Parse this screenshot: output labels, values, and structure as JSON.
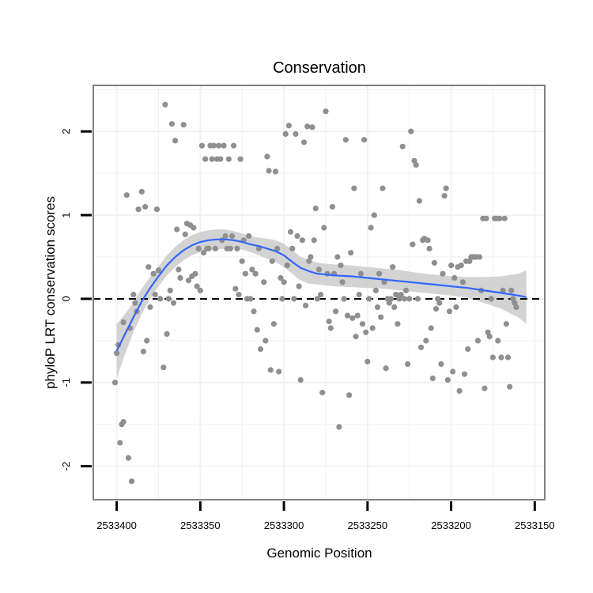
{
  "colors": {
    "points": "#8f8f8f",
    "smooth_line": "#3366ff",
    "ribbon": "#c8c8c8",
    "grid": "#f2f2f2",
    "panel_border": "#808080",
    "reference_line": "#000000"
  },
  "chart_data": {
    "type": "scatter",
    "title": "Conservation",
    "xlabel": "Genomic Position",
    "ylabel": "phyloP LRT conservation scores",
    "x_reversed": true,
    "xlim": [
      2533414,
      2533144
    ],
    "ylim": [
      -2.4,
      2.55
    ],
    "x_ticks": [
      2533400,
      2533350,
      2533300,
      2533250,
      2533200,
      2533150
    ],
    "x_tick_labels": [
      "2533400",
      "2533350",
      "2533300",
      "2533250",
      "2533200",
      "2533150"
    ],
    "y_ticks": [
      -2,
      -1,
      0,
      1,
      2
    ],
    "y_tick_labels": [
      "-2",
      "-1",
      "0",
      "1",
      "2"
    ],
    "reference_line": {
      "y": 0,
      "style": "dashed"
    },
    "points": [
      [
        2533401,
        -1.0
      ],
      [
        2533400,
        -0.65
      ],
      [
        2533399,
        -0.55
      ],
      [
        2533398,
        -1.72
      ],
      [
        2533397,
        -1.5
      ],
      [
        2533396,
        -1.47
      ],
      [
        2533396,
        -0.28
      ],
      [
        2533394,
        1.24
      ],
      [
        2533393,
        -1.9
      ],
      [
        2533392,
        -0.35
      ],
      [
        2533391,
        -2.18
      ],
      [
        2533390,
        0.05
      ],
      [
        2533389,
        -0.05
      ],
      [
        2533388,
        -0.15
      ],
      [
        2533387,
        1.07
      ],
      [
        2533385,
        1.28
      ],
      [
        2533384,
        -0.63
      ],
      [
        2533383,
        1.1
      ],
      [
        2533382,
        -0.5
      ],
      [
        2533381,
        0.38
      ],
      [
        2533380,
        -0.1
      ],
      [
        2533378,
        0.3
      ],
      [
        2533377,
        0.05
      ],
      [
        2533376,
        1.07
      ],
      [
        2533375,
        0.34
      ],
      [
        2533374,
        0.0
      ],
      [
        2533372,
        -0.82
      ],
      [
        2533371,
        2.32
      ],
      [
        2533370,
        -0.42
      ],
      [
        2533369,
        0.0
      ],
      [
        2533368,
        0.1
      ],
      [
        2533367,
        2.09
      ],
      [
        2533366,
        -0.05
      ],
      [
        2533365,
        1.89
      ],
      [
        2533364,
        0.83
      ],
      [
        2533363,
        0.35
      ],
      [
        2533362,
        0.25
      ],
      [
        2533360,
        2.08
      ],
      [
        2533359,
        0.77
      ],
      [
        2533358,
        0.9
      ],
      [
        2533357,
        0.22
      ],
      [
        2533356,
        0.88
      ],
      [
        2533355,
        0.27
      ],
      [
        2533354,
        0.85
      ],
      [
        2533353,
        0.3
      ],
      [
        2533352,
        0.15
      ],
      [
        2533351,
        0.6
      ],
      [
        2533350,
        0.1
      ],
      [
        2533349,
        1.83
      ],
      [
        2533348,
        0.55
      ],
      [
        2533347,
        1.67
      ],
      [
        2533346,
        0.6
      ],
      [
        2533345,
        0.6
      ],
      [
        2533344,
        1.83
      ],
      [
        2533343,
        1.67
      ],
      [
        2533342,
        1.83
      ],
      [
        2533341,
        0.6
      ],
      [
        2533340,
        1.67
      ],
      [
        2533339,
        1.83
      ],
      [
        2533338,
        1.67
      ],
      [
        2533337,
        0.7
      ],
      [
        2533336,
        1.83
      ],
      [
        2533335,
        0.75
      ],
      [
        2533334,
        0.6
      ],
      [
        2533333,
        1.67
      ],
      [
        2533332,
        0.6
      ],
      [
        2533331,
        0.75
      ],
      [
        2533330,
        1.83
      ],
      [
        2533329,
        0.12
      ],
      [
        2533328,
        0.6
      ],
      [
        2533327,
        0.05
      ],
      [
        2533326,
        1.67
      ],
      [
        2533325,
        0.45
      ],
      [
        2533324,
        0.7
      ],
      [
        2533323,
        0.3
      ],
      [
        2533322,
        0.0
      ],
      [
        2533321,
        0.75
      ],
      [
        2533320,
        0.0
      ],
      [
        2533319,
        0.35
      ],
      [
        2533318,
        -0.15
      ],
      [
        2533317,
        0.3
      ],
      [
        2533316,
        -0.37
      ],
      [
        2533315,
        0.6
      ],
      [
        2533314,
        -0.6
      ],
      [
        2533312,
        0.2
      ],
      [
        2533311,
        -0.5
      ],
      [
        2533310,
        1.7
      ],
      [
        2533309,
        1.53
      ],
      [
        2533308,
        -0.85
      ],
      [
        2533307,
        0.45
      ],
      [
        2533306,
        -0.3
      ],
      [
        2533305,
        1.52
      ],
      [
        2533304,
        0.6
      ],
      [
        2533303,
        -0.87
      ],
      [
        2533302,
        0.25
      ],
      [
        2533301,
        0.0
      ],
      [
        2533300,
        0.2
      ],
      [
        2533299,
        1.97
      ],
      [
        2533298,
        0.4
      ],
      [
        2533297,
        2.07
      ],
      [
        2533296,
        0.8
      ],
      [
        2533295,
        0.6
      ],
      [
        2533294,
        0.0
      ],
      [
        2533293,
        1.97
      ],
      [
        2533292,
        0.75
      ],
      [
        2533291,
        0.15
      ],
      [
        2533290,
        -0.97
      ],
      [
        2533289,
        0.7
      ],
      [
        2533288,
        1.87
      ],
      [
        2533287,
        -0.08
      ],
      [
        2533286,
        2.06
      ],
      [
        2533285,
        0.45
      ],
      [
        2533284,
        0.5
      ],
      [
        2533283,
        2.05
      ],
      [
        2533282,
        0.7
      ],
      [
        2533281,
        1.08
      ],
      [
        2533280,
        0.0
      ],
      [
        2533279,
        0.35
      ],
      [
        2533278,
        0.05
      ],
      [
        2533277,
        -1.12
      ],
      [
        2533276,
        0.85
      ],
      [
        2533275,
        2.24
      ],
      [
        2533274,
        0.3
      ],
      [
        2533273,
        -0.27
      ],
      [
        2533272,
        -0.35
      ],
      [
        2533271,
        1.1
      ],
      [
        2533270,
        0.3
      ],
      [
        2533269,
        -0.15
      ],
      [
        2533268,
        0.5
      ],
      [
        2533267,
        -1.53
      ],
      [
        2533266,
        0.4
      ],
      [
        2533265,
        0.2
      ],
      [
        2533264,
        0.0
      ],
      [
        2533263,
        1.9
      ],
      [
        2533262,
        -0.2
      ],
      [
        2533261,
        -1.15
      ],
      [
        2533260,
        0.55
      ],
      [
        2533259,
        -0.23
      ],
      [
        2533258,
        1.32
      ],
      [
        2533257,
        -0.45
      ],
      [
        2533256,
        -0.2
      ],
      [
        2533255,
        0.05
      ],
      [
        2533254,
        0.3
      ],
      [
        2533253,
        -0.3
      ],
      [
        2533252,
        1.9
      ],
      [
        2533251,
        -0.4
      ],
      [
        2533250,
        -0.75
      ],
      [
        2533249,
        0.0
      ],
      [
        2533248,
        0.85
      ],
      [
        2533247,
        -0.35
      ],
      [
        2533246,
        1.0
      ],
      [
        2533245,
        0.1
      ],
      [
        2533244,
        -0.1
      ],
      [
        2533243,
        0.3
      ],
      [
        2533242,
        -0.22
      ],
      [
        2533241,
        1.32
      ],
      [
        2533240,
        0.2
      ],
      [
        2533239,
        -0.83
      ],
      [
        2533238,
        0.0
      ],
      [
        2533237,
        -0.05
      ],
      [
        2533236,
        0.0
      ],
      [
        2533235,
        0.38
      ],
      [
        2533234,
        -0.1
      ],
      [
        2533233,
        0.05
      ],
      [
        2533232,
        -0.3
      ],
      [
        2533231,
        0.0
      ],
      [
        2533230,
        0.05
      ],
      [
        2533229,
        1.82
      ],
      [
        2533228,
        0.0
      ],
      [
        2533227,
        0.1
      ],
      [
        2533226,
        -0.78
      ],
      [
        2533225,
        0.0
      ],
      [
        2533224,
        2.0
      ],
      [
        2533223,
        0.65
      ],
      [
        2533222,
        1.65
      ],
      [
        2533221,
        1.6
      ],
      [
        2533220,
        0.0
      ],
      [
        2533219,
        1.17
      ],
      [
        2533218,
        -0.58
      ],
      [
        2533217,
        0.7
      ],
      [
        2533216,
        0.72
      ],
      [
        2533215,
        -0.5
      ],
      [
        2533214,
        0.7
      ],
      [
        2533213,
        0.6
      ],
      [
        2533212,
        -0.35
      ],
      [
        2533211,
        -0.95
      ],
      [
        2533210,
        0.43
      ],
      [
        2533209,
        -0.12
      ],
      [
        2533208,
        0.0
      ],
      [
        2533207,
        -0.05
      ],
      [
        2533206,
        -0.78
      ],
      [
        2533205,
        0.3
      ],
      [
        2533204,
        1.23
      ],
      [
        2533203,
        1.32
      ],
      [
        2533202,
        -0.97
      ],
      [
        2533201,
        -0.15
      ],
      [
        2533200,
        0.4
      ],
      [
        2533199,
        -0.87
      ],
      [
        2533198,
        0.25
      ],
      [
        2533197,
        -0.1
      ],
      [
        2533196,
        0.38
      ],
      [
        2533195,
        -1.1
      ],
      [
        2533194,
        0.4
      ],
      [
        2533193,
        0.2
      ],
      [
        2533192,
        -0.9
      ],
      [
        2533191,
        0.45
      ],
      [
        2533190,
        -0.6
      ],
      [
        2533189,
        0.45
      ],
      [
        2533188,
        0.5
      ],
      [
        2533187,
        0.5
      ],
      [
        2533186,
        0.5
      ],
      [
        2533185,
        0.5
      ],
      [
        2533184,
        -0.5
      ],
      [
        2533183,
        0.5
      ],
      [
        2533182,
        0.1
      ],
      [
        2533181,
        0.96
      ],
      [
        2533180,
        -1.07
      ],
      [
        2533179,
        0.96
      ],
      [
        2533178,
        -0.4
      ],
      [
        2533177,
        -0.45
      ],
      [
        2533176,
        0.0
      ],
      [
        2533175,
        -0.7
      ],
      [
        2533174,
        0.96
      ],
      [
        2533173,
        0.96
      ],
      [
        2533172,
        -0.5
      ],
      [
        2533171,
        0.96
      ],
      [
        2533170,
        -0.7
      ],
      [
        2533169,
        0.1
      ],
      [
        2533168,
        0.96
      ],
      [
        2533167,
        -0.3
      ],
      [
        2533166,
        -0.7
      ],
      [
        2533165,
        -1.05
      ],
      [
        2533164,
        0.1
      ],
      [
        2533163,
        0.0
      ],
      [
        2533162,
        -0.05
      ],
      [
        2533161,
        -0.1
      ]
    ],
    "smooth": {
      "method": "loess",
      "x": [
        2533400,
        2533395,
        2533390,
        2533385,
        2533380,
        2533375,
        2533370,
        2533365,
        2533360,
        2533355,
        2533350,
        2533345,
        2533340,
        2533335,
        2533330,
        2533325,
        2533320,
        2533315,
        2533310,
        2533305,
        2533300,
        2533295,
        2533290,
        2533285,
        2533280,
        2533270,
        2533260,
        2533250,
        2533240,
        2533230,
        2533220,
        2533210,
        2533200,
        2533190,
        2533180,
        2533170,
        2533160,
        2533155
      ],
      "y": [
        -0.62,
        -0.42,
        -0.22,
        -0.03,
        0.13,
        0.27,
        0.4,
        0.5,
        0.58,
        0.64,
        0.68,
        0.7,
        0.71,
        0.71,
        0.7,
        0.68,
        0.65,
        0.63,
        0.6,
        0.57,
        0.52,
        0.44,
        0.37,
        0.33,
        0.3,
        0.28,
        0.27,
        0.25,
        0.23,
        0.21,
        0.19,
        0.17,
        0.15,
        0.13,
        0.1,
        0.07,
        0.04,
        0.02
      ],
      "lower": [
        -0.95,
        -0.66,
        -0.4,
        -0.18,
        0.0,
        0.15,
        0.28,
        0.38,
        0.46,
        0.52,
        0.56,
        0.58,
        0.59,
        0.6,
        0.6,
        0.59,
        0.56,
        0.52,
        0.48,
        0.44,
        0.38,
        0.3,
        0.22,
        0.18,
        0.17,
        0.15,
        0.14,
        0.13,
        0.12,
        0.1,
        0.08,
        0.06,
        0.04,
        0.01,
        -0.05,
        -0.12,
        -0.22,
        -0.3
      ],
      "upper": [
        -0.3,
        -0.18,
        -0.04,
        0.12,
        0.26,
        0.39,
        0.52,
        0.62,
        0.7,
        0.76,
        0.8,
        0.82,
        0.83,
        0.83,
        0.81,
        0.78,
        0.75,
        0.73,
        0.72,
        0.7,
        0.66,
        0.58,
        0.5,
        0.47,
        0.43,
        0.41,
        0.4,
        0.38,
        0.36,
        0.34,
        0.31,
        0.29,
        0.27,
        0.26,
        0.26,
        0.27,
        0.3,
        0.34
      ]
    }
  }
}
